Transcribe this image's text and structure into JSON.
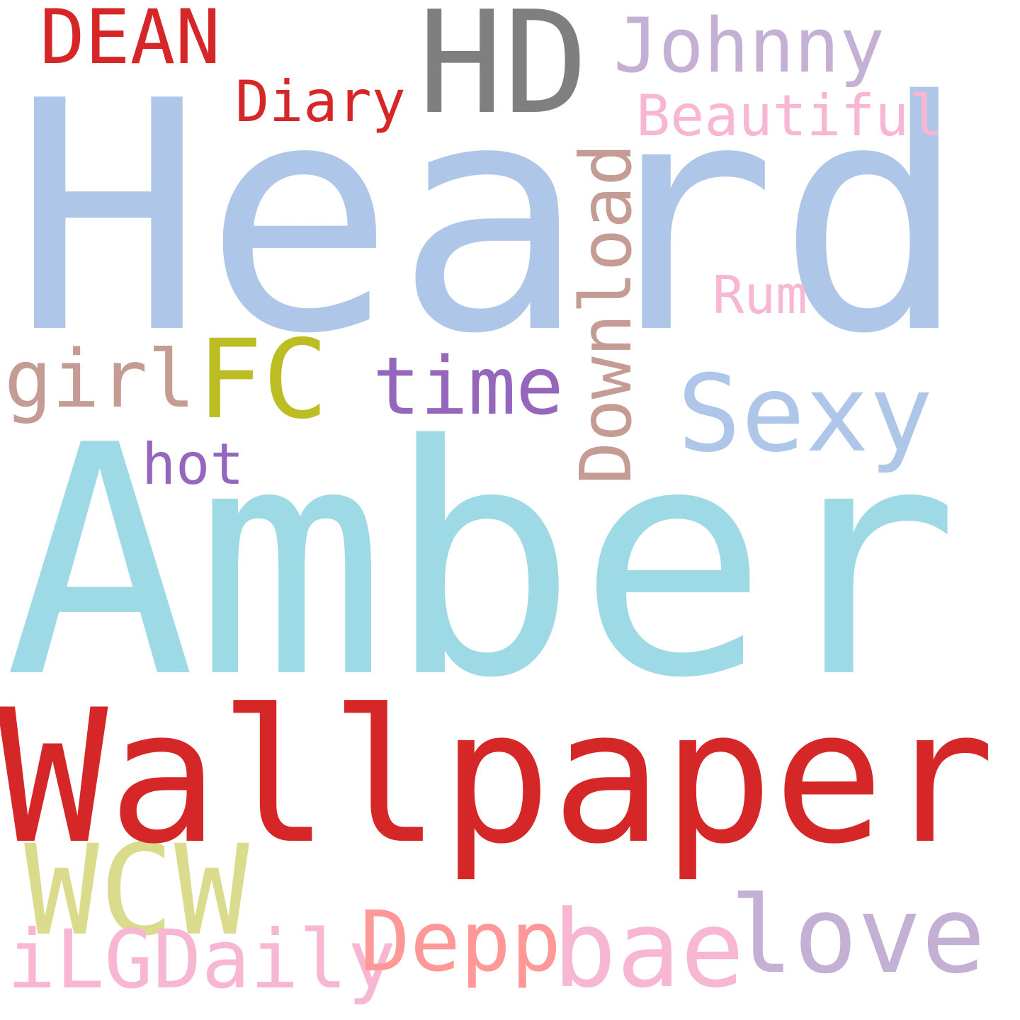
{
  "words": {
    "heard": {
      "text": "Heard",
      "color": "#aec7e8"
    },
    "amber": {
      "text": "Amber",
      "color": "#9edae5"
    },
    "wallpaper": {
      "text": "Wallpaper",
      "color": "#d62728"
    },
    "hd": {
      "text": "HD",
      "color": "#7f7f7f"
    },
    "dean": {
      "text": "DEAN",
      "color": "#d62728"
    },
    "johnny": {
      "text": "Johnny",
      "color": "#c5b0d5"
    },
    "diary": {
      "text": "Diary",
      "color": "#d62728"
    },
    "beautiful": {
      "text": "Beautiful",
      "color": "#f7b6d2"
    },
    "download": {
      "text": "Download",
      "color": "#c49c94"
    },
    "rum": {
      "text": "Rum",
      "color": "#f7b6d2"
    },
    "girl": {
      "text": "girl",
      "color": "#c49c94"
    },
    "fc": {
      "text": "FC",
      "color": "#bcbd22"
    },
    "time": {
      "text": "time",
      "color": "#9467bd"
    },
    "sexy": {
      "text": "Sexy",
      "color": "#aec7e8"
    },
    "hot": {
      "text": "hot",
      "color": "#9467bd"
    },
    "wcw": {
      "text": "WCW",
      "color": "#dbdb8d"
    },
    "depp": {
      "text": "Depp",
      "color": "#ff9896"
    },
    "bae": {
      "text": "bae",
      "color": "#f7b6d2"
    },
    "love": {
      "text": "love",
      "color": "#c5b0d5"
    },
    "ilgdaily": {
      "text": "iLGDaily",
      "color": "#f7b6d2"
    }
  }
}
